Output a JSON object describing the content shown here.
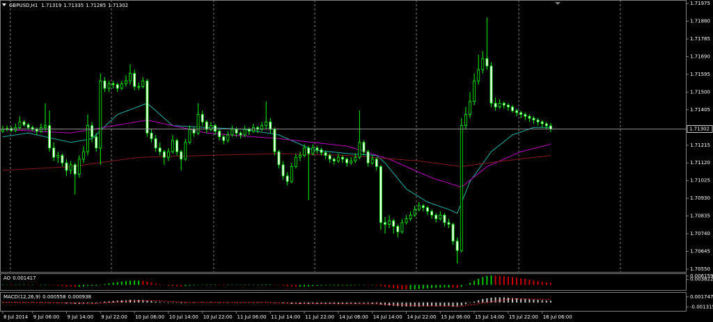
{
  "chart_data": {
    "type": "candlestick",
    "symbol": "GBPUSD,H1",
    "up_color": "#000000",
    "down_color": "#ffffff",
    "wick_color": "#00ff00",
    "ylim": [
      1.70535,
      1.71994
    ],
    "yticks": [
      {
        "value": 1.7055,
        "label": "1.70550"
      },
      1.70645,
      {
        "value": 1.7074,
        "label": "1.70740"
      },
      1.70835,
      {
        "value": 1.7093,
        "label": "1.70930"
      },
      1.71025,
      {
        "value": 1.7112,
        "label": "1.71120"
      },
      1.71215,
      1.71405,
      {
        "value": 1.715,
        "label": "1.71500"
      },
      1.71595,
      {
        "value": 1.7169,
        "label": "1.71690"
      },
      1.71785,
      {
        "value": 1.7188,
        "label": "1.71880"
      },
      1.71975
    ],
    "categories": [
      "8 Jul 2014",
      null,
      null,
      null,
      null,
      null,
      null,
      "9 Jul 06:00",
      null,
      null,
      null,
      null,
      null,
      null,
      null,
      "9 Jul 14:00",
      null,
      null,
      null,
      null,
      null,
      null,
      null,
      "9 Jul 22:00",
      null,
      null,
      null,
      null,
      null,
      null,
      null,
      "10 Jul 06:00",
      null,
      null,
      null,
      null,
      null,
      null,
      null,
      "10 Jul 14:00",
      null,
      null,
      null,
      null,
      null,
      null,
      null,
      "10 Jul 22:00",
      null,
      null,
      null,
      null,
      null,
      null,
      null,
      "11 Jul 06:00",
      null,
      null,
      null,
      null,
      null,
      null,
      null,
      "11 Jul 14:00",
      null,
      null,
      null,
      null,
      null,
      null,
      null,
      "11 Jul 22:00",
      null,
      null,
      null,
      null,
      null,
      null,
      null,
      "14 Jul 06:00",
      null,
      null,
      null,
      null,
      null,
      null,
      null,
      "14 Jul 14:00",
      null,
      null,
      null,
      null,
      null,
      null,
      null,
      "14 Jul 22:00",
      null,
      null,
      null,
      null,
      null,
      null,
      null,
      "15 Jul 06:00",
      null,
      null,
      null,
      null,
      null,
      null,
      null,
      "15 Jul 14:00",
      null,
      null,
      null,
      null,
      null,
      null,
      null,
      "15 Jul 22:00",
      null,
      null,
      null,
      null,
      null,
      null,
      null,
      "16 Jul 06:00",
      null,
      null
    ],
    "candles": [
      [
        1.7129,
        1.7132,
        1.7128,
        1.713
      ],
      [
        1.713,
        1.7132,
        1.7129,
        1.71305
      ],
      [
        1.71305,
        1.71315,
        1.71285,
        1.71295
      ],
      [
        1.71295,
        1.7133,
        1.71285,
        1.7131
      ],
      [
        1.7131,
        1.7137,
        1.713,
        1.7134
      ],
      [
        1.7134,
        1.7135,
        1.71315,
        1.71325
      ],
      [
        1.71325,
        1.71335,
        1.713,
        1.7131
      ],
      [
        1.7131,
        1.7132,
        1.7129,
        1.713
      ],
      [
        1.713,
        1.7131,
        1.7127,
        1.7129
      ],
      [
        1.7129,
        1.7133,
        1.7128,
        1.7131
      ],
      [
        1.7131,
        1.7144,
        1.7129,
        1.7132
      ],
      [
        1.7132,
        1.714,
        1.7118,
        1.712
      ],
      [
        1.712,
        1.7123,
        1.7113,
        1.7115
      ],
      [
        1.7115,
        1.7118,
        1.7112,
        1.7116
      ],
      [
        1.7116,
        1.7117,
        1.711,
        1.7112
      ],
      [
        1.7112,
        1.7114,
        1.7105,
        1.7108
      ],
      [
        1.7108,
        1.7113,
        1.7106,
        1.7111
      ],
      [
        1.7111,
        1.7112,
        1.7095,
        1.7106
      ],
      [
        1.7106,
        1.7116,
        1.7104,
        1.7114
      ],
      [
        1.7114,
        1.7121,
        1.7112,
        1.7118
      ],
      [
        1.7118,
        1.7138,
        1.7116,
        1.7132
      ],
      [
        1.7132,
        1.7134,
        1.7123,
        1.7126
      ],
      [
        1.7126,
        1.7128,
        1.7118,
        1.712
      ],
      [
        1.712,
        1.716,
        1.7111,
        1.7156
      ],
      [
        1.7156,
        1.7158,
        1.715,
        1.7152
      ],
      [
        1.7152,
        1.7156,
        1.715,
        1.71545
      ],
      [
        1.71545,
        1.7156,
        1.7152,
        1.7154
      ],
      [
        1.7154,
        1.7155,
        1.715,
        1.7152
      ],
      [
        1.7152,
        1.7156,
        1.7151,
        1.71545
      ],
      [
        1.71545,
        1.7159,
        1.7153,
        1.7156
      ],
      [
        1.7156,
        1.7165,
        1.7154,
        1.716
      ],
      [
        1.716,
        1.7162,
        1.7151,
        1.7153
      ],
      [
        1.7153,
        1.7155,
        1.7151,
        1.7153
      ],
      [
        1.7153,
        1.7158,
        1.7152,
        1.7156
      ],
      [
        1.7156,
        1.7157,
        1.7126,
        1.7128
      ],
      [
        1.7128,
        1.713,
        1.7123,
        1.7125
      ],
      [
        1.7125,
        1.7127,
        1.7118,
        1.712
      ],
      [
        1.712,
        1.7123,
        1.7116,
        1.7118
      ],
      [
        1.7118,
        1.7119,
        1.7111,
        1.7115
      ],
      [
        1.7115,
        1.712,
        1.7113,
        1.7118
      ],
      [
        1.7118,
        1.7127,
        1.7117,
        1.7124
      ],
      [
        1.7124,
        1.7125,
        1.7116,
        1.7118
      ],
      [
        1.7118,
        1.7119,
        1.7108,
        1.7114
      ],
      [
        1.7114,
        1.7125,
        1.7113,
        1.7123
      ],
      [
        1.7123,
        1.7132,
        1.7122,
        1.713
      ],
      [
        1.713,
        1.7131,
        1.7126,
        1.7128
      ],
      [
        1.7128,
        1.7144,
        1.7127,
        1.7138
      ],
      [
        1.7138,
        1.714,
        1.7132,
        1.7134
      ],
      [
        1.7134,
        1.7135,
        1.7128,
        1.713
      ],
      [
        1.713,
        1.7134,
        1.7129,
        1.7132
      ],
      [
        1.7132,
        1.7133,
        1.7127,
        1.7129
      ],
      [
        1.7129,
        1.713,
        1.7124,
        1.7126
      ],
      [
        1.7126,
        1.7127,
        1.7122,
        1.7124
      ],
      [
        1.7124,
        1.7129,
        1.7123,
        1.7127
      ],
      [
        1.7127,
        1.7132,
        1.7126,
        1.713
      ],
      [
        1.713,
        1.7131,
        1.7126,
        1.7128
      ],
      [
        1.7128,
        1.7129,
        1.7125,
        1.7127
      ],
      [
        1.7127,
        1.7132,
        1.7126,
        1.713
      ],
      [
        1.713,
        1.7131,
        1.7127,
        1.7129
      ],
      [
        1.7129,
        1.7133,
        1.7128,
        1.7131
      ],
      [
        1.7131,
        1.7132,
        1.7128,
        1.713
      ],
      [
        1.713,
        1.7134,
        1.7129,
        1.7132
      ],
      [
        1.7132,
        1.7145,
        1.713,
        1.7134
      ],
      [
        1.7134,
        1.7136,
        1.7128,
        1.713
      ],
      [
        1.713,
        1.7131,
        1.7116,
        1.7118
      ],
      [
        1.7118,
        1.7119,
        1.7109,
        1.7111
      ],
      [
        1.7111,
        1.7113,
        1.7103,
        1.7105
      ],
      [
        1.7105,
        1.7107,
        1.71,
        1.7102
      ],
      [
        1.7102,
        1.7112,
        1.7101,
        1.711
      ],
      [
        1.711,
        1.7117,
        1.7109,
        1.7115
      ],
      [
        1.7115,
        1.7118,
        1.7113,
        1.7116
      ],
      [
        1.7116,
        1.7122,
        1.7115,
        1.712
      ],
      [
        1.712,
        1.7121,
        1.7092,
        1.7117
      ],
      [
        1.7117,
        1.7122,
        1.7116,
        1.712
      ],
      [
        1.712,
        1.7121,
        1.7117,
        1.7119
      ],
      [
        1.7119,
        1.712,
        1.7116,
        1.71175
      ],
      [
        1.71175,
        1.71185,
        1.7114,
        1.7116
      ],
      [
        1.7116,
        1.7117,
        1.7112,
        1.7114
      ],
      [
        1.7114,
        1.7115,
        1.7111,
        1.7113
      ],
      [
        1.7113,
        1.7117,
        1.7112,
        1.7115
      ],
      [
        1.7115,
        1.7116,
        1.7112,
        1.7114
      ],
      [
        1.7114,
        1.7115,
        1.711,
        1.7112
      ],
      [
        1.7112,
        1.7115,
        1.7111,
        1.7113
      ],
      [
        1.7113,
        1.7117,
        1.7112,
        1.7115
      ],
      [
        1.7115,
        1.714,
        1.7114,
        1.7123
      ],
      [
        1.7123,
        1.7124,
        1.7116,
        1.7118
      ],
      [
        1.7118,
        1.7119,
        1.711,
        1.7112
      ],
      [
        1.7112,
        1.7116,
        1.7111,
        1.7114
      ],
      [
        1.7114,
        1.7115,
        1.7108,
        1.711
      ],
      [
        1.711,
        1.7111,
        1.7076,
        1.708
      ],
      [
        1.708,
        1.7083,
        1.7074,
        1.7079
      ],
      [
        1.7079,
        1.7084,
        1.7077,
        1.7081
      ],
      [
        1.7081,
        1.7082,
        1.7074,
        1.7078
      ],
      [
        1.7078,
        1.7079,
        1.7072,
        1.7075
      ],
      [
        1.7075,
        1.7082,
        1.7074,
        1.708
      ],
      [
        1.708,
        1.7084,
        1.7079,
        1.7082
      ],
      [
        1.7082,
        1.7086,
        1.7081,
        1.7084
      ],
      [
        1.7084,
        1.7089,
        1.7083,
        1.7087
      ],
      [
        1.7087,
        1.7091,
        1.7086,
        1.7089
      ],
      [
        1.7089,
        1.709,
        1.7086,
        1.7088
      ],
      [
        1.7088,
        1.7089,
        1.7084,
        1.7086
      ],
      [
        1.7086,
        1.7087,
        1.7082,
        1.7084
      ],
      [
        1.7084,
        1.7085,
        1.708,
        1.7082
      ],
      [
        1.7082,
        1.7086,
        1.7081,
        1.7084
      ],
      [
        1.7084,
        1.7085,
        1.7078,
        1.708
      ],
      [
        1.708,
        1.7082,
        1.7077,
        1.7079
      ],
      [
        1.7079,
        1.708,
        1.7068,
        1.707
      ],
      [
        1.707,
        1.7072,
        1.7058,
        1.7065
      ],
      [
        1.7065,
        1.7136,
        1.7064,
        1.7132
      ],
      [
        1.7132,
        1.7142,
        1.713,
        1.7138
      ],
      [
        1.7138,
        1.715,
        1.7136,
        1.7145
      ],
      [
        1.7145,
        1.716,
        1.7143,
        1.7156
      ],
      [
        1.7156,
        1.717,
        1.7154,
        1.7162
      ],
      [
        1.7162,
        1.7172,
        1.716,
        1.7168
      ],
      [
        1.7168,
        1.719,
        1.7162,
        1.7164
      ],
      [
        1.7164,
        1.7166,
        1.7142,
        1.7144
      ],
      [
        1.7144,
        1.7147,
        1.714,
        1.7142
      ],
      [
        1.7142,
        1.7146,
        1.7141,
        1.7144
      ],
      [
        1.7144,
        1.7145,
        1.7141,
        1.7143
      ],
      [
        1.7143,
        1.7144,
        1.714,
        1.7142
      ],
      [
        1.7142,
        1.7143,
        1.7139,
        1.714
      ],
      [
        1.714,
        1.7141,
        1.7137,
        1.7139
      ],
      [
        1.7139,
        1.714,
        1.7136,
        1.7138
      ],
      [
        1.7138,
        1.7139,
        1.7135,
        1.7137
      ],
      [
        1.7137,
        1.7138,
        1.7134,
        1.7136
      ],
      [
        1.7136,
        1.7137,
        1.7133,
        1.7135
      ],
      [
        1.7135,
        1.7136,
        1.7132,
        1.7134
      ],
      [
        1.7134,
        1.7135,
        1.7131,
        1.7133
      ],
      [
        1.7133,
        1.7134,
        1.713,
        1.71319
      ],
      [
        1.71319,
        1.71335,
        1.71285,
        1.71302
      ]
    ],
    "moving_averages": [
      {
        "color": "#20b2aa",
        "x": [
          0,
          6,
          16,
          21,
          27,
          34,
          40,
          48,
          57,
          65,
          73,
          81,
          88,
          90,
          95,
          100,
          105,
          107,
          110,
          115,
          120,
          125,
          129
        ],
        "values": [
          1.7126,
          1.7128,
          1.7123,
          1.7125,
          1.7138,
          1.7144,
          1.7132,
          1.7131,
          1.713,
          1.7127,
          1.7119,
          1.7117,
          1.7116,
          1.7112,
          1.7098,
          1.7091,
          1.7087,
          1.7085,
          1.7102,
          1.7118,
          1.7127,
          1.7131,
          1.7131
        ]
      },
      {
        "color": "#c000c0",
        "x": [
          0,
          16,
          34,
          40,
          48,
          65,
          81,
          91,
          101,
          108,
          114,
          122,
          129
        ],
        "values": [
          1.713,
          1.7128,
          1.7135,
          1.7132,
          1.7128,
          1.7125,
          1.7121,
          1.7114,
          1.7104,
          1.7099,
          1.711,
          1.7118,
          1.7122
        ]
      },
      {
        "color": "#8b1a1a",
        "x": [
          0,
          16,
          32,
          48,
          65,
          81,
          98,
          108,
          114,
          129
        ],
        "values": [
          1.7108,
          1.711,
          1.7115,
          1.7116,
          1.7117,
          1.7116,
          1.7113,
          1.711,
          1.7112,
          1.7116
        ]
      }
    ],
    "ao": {
      "name": "AO",
      "up_color": "#00c800",
      "down_color": "#d00000",
      "ylim": [
        -0.004,
        0.0075
      ],
      "yticks": [
        0.006159,
        0.003822
      ],
      "values": [
        0.0002,
        0.0002,
        0.0001,
        0.0002,
        0.0003,
        0.0003,
        0.0002,
        0.0002,
        0.0001,
        0.0001,
        0.0001,
        0,
        -0.0003,
        -0.0005,
        -0.0008,
        -0.0011,
        -0.0012,
        -0.0014,
        -0.0013,
        -0.0011,
        -0.0008,
        -0.0006,
        -0.0006,
        0,
        0.0006,
        0.0011,
        0.0016,
        0.002,
        0.0023,
        0.0026,
        0.0029,
        0.003,
        0.003,
        0.0029,
        0.0022,
        0.0016,
        0.001,
        0.0004,
        -0.0001,
        -0.0005,
        -0.0007,
        -0.0009,
        -0.001,
        -0.0009,
        -0.0006,
        -0.0004,
        -0.0001,
        0.0001,
        0.0002,
        0.0003,
        0.0003,
        0.0002,
        0.0001,
        0.0001,
        0.0001,
        0.0001,
        0.0001,
        0.0002,
        0.0002,
        0.0002,
        0.0002,
        0.0003,
        0.0004,
        0.0004,
        0.0002,
        -0.0001,
        -0.0005,
        -0.0009,
        -0.0011,
        -0.0012,
        -0.0012,
        -0.0011,
        -0.001,
        -0.0008,
        -0.0006,
        -0.0005,
        -0.0004,
        -0.0004,
        -0.0004,
        -0.0004,
        -0.0004,
        -0.0004,
        -0.0004,
        -0.0003,
        -0.0002,
        -0.0002,
        -0.0003,
        -0.0003,
        -0.0004,
        -0.0008,
        -0.0013,
        -0.0018,
        -0.0023,
        -0.0027,
        -0.003,
        -0.0031,
        -0.0031,
        -0.003,
        -0.0028,
        -0.0026,
        -0.0024,
        -0.0022,
        -0.002,
        -0.0019,
        -0.0018,
        -0.0018,
        -0.0019,
        -0.0021,
        -0.0012,
        0,
        0.0014,
        0.0028,
        0.0042,
        0.0054,
        0.0062,
        0.0065,
        0.0064,
        0.0062,
        0.006,
        0.0057,
        0.0053,
        0.0049,
        0.0045,
        0.0041,
        0.0036,
        0.0031,
        0.0026,
        0.0021,
        0.0017,
        0.001417
      ]
    },
    "macd": {
      "name": "MACD(12,26,9)",
      "color": "#c8c8c8",
      "ylim": [
        -0.002744,
        0.002972
      ],
      "yticks": [
        0.001747,
        -0.001315
      ],
      "values": [
        0.0001,
        0.0001,
        0.0001,
        0.0001,
        0.0001,
        0.0001,
        0.0001,
        0.0001,
        0.0001,
        0.0001,
        0.0001,
        0,
        -0.0001,
        -0.0001,
        -0.0002,
        -0.0003,
        -0.0003,
        -0.0004,
        -0.0004,
        -0.0003,
        -0.0002,
        -0.0002,
        -0.0002,
        0.0001,
        0.0003,
        0.0004,
        0.0005,
        0.0006,
        0.0007,
        0.0007,
        0.0008,
        0.0008,
        0.0008,
        0.0008,
        0.0006,
        0.0005,
        0.0003,
        0.0002,
        0.0001,
        0,
        -0.0001,
        -0.0001,
        -0.0002,
        -0.0001,
        0,
        0,
        0.0001,
        0.0001,
        0.0001,
        0.0001,
        0.0001,
        0,
        0,
        0,
        0,
        0,
        0,
        0,
        0,
        0,
        0,
        0.0001,
        0.0001,
        0.0001,
        0,
        -0.0001,
        -0.0002,
        -0.0003,
        -0.0004,
        -0.0004,
        -0.0004,
        -0.0004,
        -0.0004,
        -0.0004,
        -0.0004,
        -0.0004,
        -0.0004,
        -0.0004,
        -0.0004,
        -0.0004,
        -0.0004,
        -0.0004,
        -0.0004,
        -0.0004,
        -0.0003,
        -0.0003,
        -0.0003,
        -0.0004,
        -0.0004,
        -0.0006,
        -0.0008,
        -0.0009,
        -0.001,
        -0.0011,
        -0.0012,
        -0.0012,
        -0.0012,
        -0.0012,
        -0.0012,
        -0.0011,
        -0.0011,
        -0.0011,
        -0.0011,
        -0.0011,
        -0.0011,
        -0.0011,
        -0.0012,
        -0.0013,
        -0.0009,
        -0.0005,
        -0.0001,
        0.0003,
        0.0007,
        0.0011,
        0.0013,
        0.0015,
        0.0016,
        0.0016,
        0.0016,
        0.0015,
        0.0014,
        0.0013,
        0.0012,
        0.0011,
        0.001,
        0.0009,
        0.0008,
        0.0007,
        0.0006,
        0.000558
      ],
      "signal": {
        "color": "#ff2020",
        "x": [
          0,
          15,
          22,
          30,
          36,
          44,
          62,
          70,
          88,
          98,
          108,
          114,
          120,
          129
        ],
        "values": [
          0.0001,
          -0.0001,
          -0.0003,
          0.0005,
          0.0006,
          0,
          0,
          -0.0003,
          -0.0004,
          -0.001,
          -0.0011,
          0,
          0.0012,
          0.000938
        ]
      }
    }
  }
}
